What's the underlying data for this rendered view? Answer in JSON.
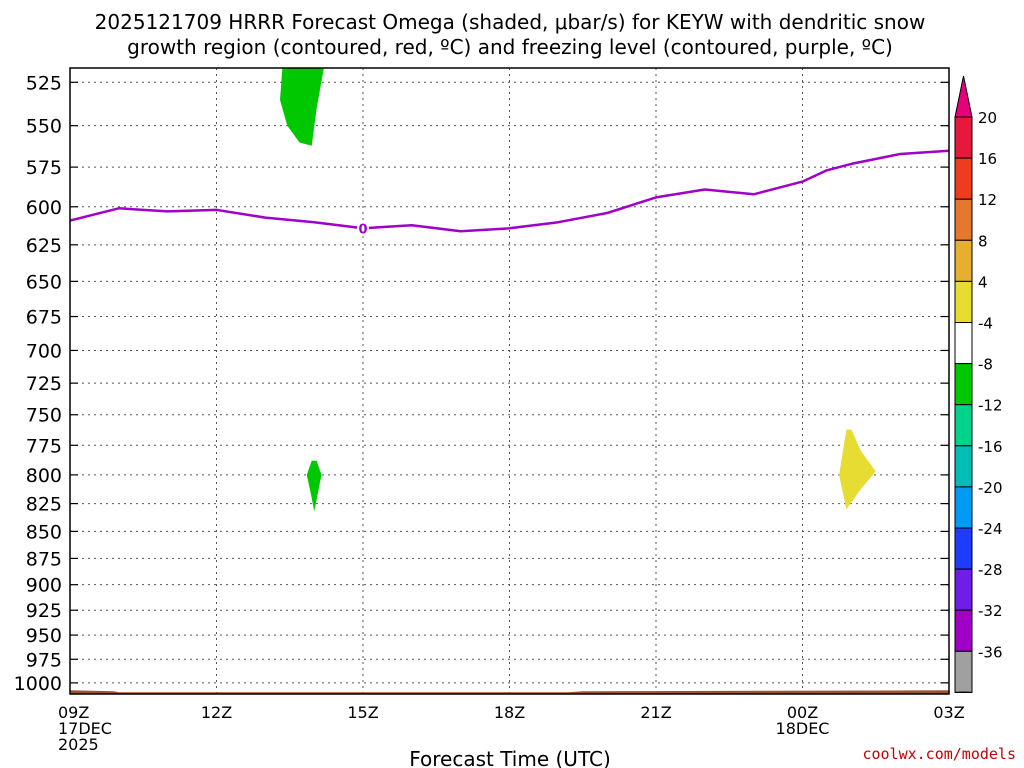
{
  "chart_data": {
    "type": "heatmap",
    "title_line1": "2025121709 HRRR Forecast Omega (shaded, μbar/s) for KEYW with dendritic snow",
    "title_line2": "growth region (contoured, red, ºC) and freezing level (contoured, purple, ºC)",
    "xlabel": "Forecast Time (UTC)",
    "ylabel": "",
    "credit": "coolwx.com/models",
    "x_range_hours": [
      0,
      18
    ],
    "y_range_hpa": [
      517,
      1012
    ],
    "y_scale": "log",
    "grid": true,
    "x_ticks": [
      {
        "hour": 0,
        "lines": [
          "09Z",
          "17DEC",
          "2025"
        ]
      },
      {
        "hour": 3,
        "lines": [
          "12Z"
        ]
      },
      {
        "hour": 6,
        "lines": [
          "15Z"
        ]
      },
      {
        "hour": 9,
        "lines": [
          "18Z"
        ]
      },
      {
        "hour": 12,
        "lines": [
          "21Z"
        ]
      },
      {
        "hour": 15,
        "lines": [
          "00Z",
          "18DEC"
        ]
      },
      {
        "hour": 18,
        "lines": [
          "03Z"
        ]
      }
    ],
    "y_ticks": [
      525,
      550,
      575,
      600,
      625,
      650,
      675,
      700,
      725,
      750,
      775,
      800,
      825,
      850,
      875,
      900,
      925,
      950,
      975,
      1000
    ],
    "freezing_level": {
      "name": "freezing level",
      "color": "#a000c8",
      "contour_label": "0",
      "label_hour": 6,
      "points": [
        [
          0,
          609
        ],
        [
          1,
          601
        ],
        [
          2,
          603
        ],
        [
          3,
          602
        ],
        [
          4,
          607
        ],
        [
          5,
          610
        ],
        [
          6,
          614
        ],
        [
          7,
          612
        ],
        [
          8,
          616
        ],
        [
          9,
          614
        ],
        [
          10,
          610
        ],
        [
          11,
          604
        ],
        [
          12,
          594
        ],
        [
          13,
          589
        ],
        [
          14,
          592
        ],
        [
          15,
          584
        ],
        [
          15.5,
          577
        ],
        [
          16,
          573
        ],
        [
          17,
          567
        ],
        [
          18,
          565
        ]
      ]
    },
    "omega_features": [
      {
        "color": "#00c800",
        "value_range": [
          -8,
          -4
        ],
        "points": [
          [
            4.35,
            517
          ],
          [
            4.3,
            535
          ],
          [
            4.45,
            550
          ],
          [
            4.7,
            560
          ],
          [
            4.95,
            562
          ],
          [
            5.05,
            540
          ],
          [
            5.2,
            517
          ]
        ]
      },
      {
        "color": "#00c800",
        "value_range": [
          -8,
          -4
        ],
        "points": [
          [
            4.95,
            788
          ],
          [
            4.85,
            800
          ],
          [
            4.95,
            820
          ],
          [
            5.0,
            832
          ],
          [
            5.15,
            800
          ],
          [
            5.05,
            788
          ]
        ]
      },
      {
        "color": "#e6dc32",
        "value_range": [
          4,
          8
        ],
        "points": [
          [
            15.9,
            762
          ],
          [
            15.75,
            800
          ],
          [
            15.9,
            830
          ],
          [
            16.2,
            812
          ],
          [
            16.5,
            797
          ],
          [
            16.2,
            780
          ],
          [
            16.0,
            762
          ]
        ]
      }
    ],
    "surface": {
      "color": "#a0522d",
      "points": [
        [
          0,
          1008
        ],
        [
          0.9,
          1009
        ],
        [
          1.0,
          1010
        ],
        [
          10.2,
          1010
        ],
        [
          10.5,
          1009
        ],
        [
          18,
          1008
        ]
      ]
    },
    "colorbar": {
      "labels": [
        "20",
        "16",
        "12",
        "8",
        "4",
        "-4",
        "-8",
        "-12",
        "-16",
        "-20",
        "-24",
        "-28",
        "-32",
        "-36"
      ],
      "top_arrow_color": "#e6007a",
      "bottom_arrow_color": "#000000",
      "colors": [
        "#e6193c",
        "#f03c1e",
        "#e6782d",
        "#e6af2d",
        "#e6dc32",
        "#ffffff",
        "#00c800",
        "#00d28c",
        "#00beb4",
        "#009bf5",
        "#1e3cff",
        "#6e1ee6",
        "#a000c8",
        "#a0a0a0"
      ]
    }
  }
}
